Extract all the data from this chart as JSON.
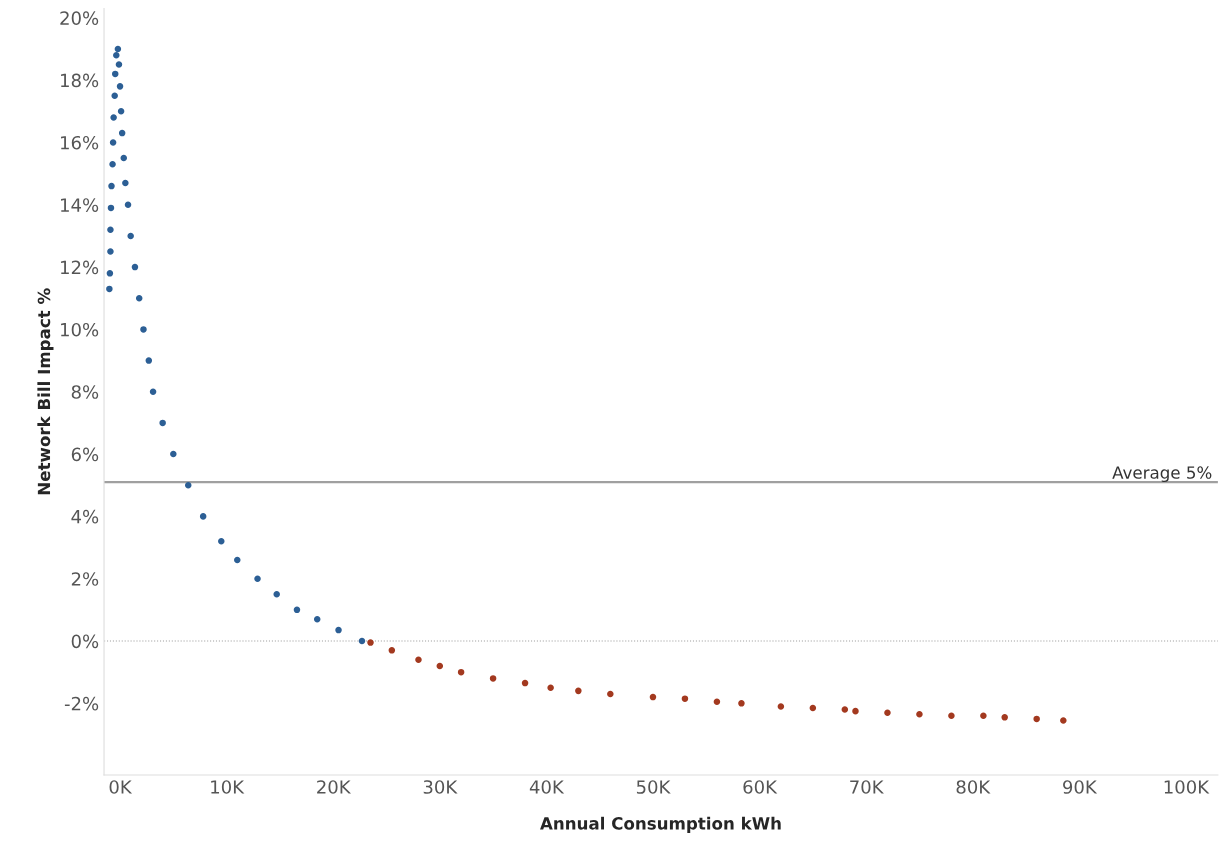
{
  "chart_data": {
    "type": "scatter",
    "xlabel": "Annual Consumption kWh",
    "ylabel": "Network Bill Impact %",
    "series": [
      {
        "color": "#2c5f95",
        "x": [
          -1000,
          -950,
          -900,
          -900,
          -850,
          -800,
          -700,
          -650,
          -600,
          -500,
          -450,
          -350,
          -200,
          -100,
          0,
          100,
          200,
          350,
          500,
          750,
          1000,
          1400,
          1800,
          2200,
          2700,
          3100,
          4000,
          5000,
          6400,
          7800,
          9500,
          11000,
          12900,
          14700,
          16600,
          18500,
          20500,
          22700
        ],
        "values": [
          11.3,
          11.8,
          12.5,
          13.2,
          13.9,
          14.6,
          15.3,
          16.0,
          16.8,
          17.5,
          18.2,
          18.8,
          19.0,
          18.5,
          17.8,
          17.0,
          16.3,
          15.5,
          14.7,
          14.0,
          13.0,
          12.0,
          11.0,
          10.0,
          9.0,
          8.0,
          7.0,
          6.0,
          5.0,
          4.0,
          3.2,
          2.6,
          2.0,
          1.5,
          1.0,
          0.7,
          0.35,
          0.0
        ]
      },
      {
        "color": "#a3391f",
        "x": [
          23500,
          25500,
          28000,
          30000,
          32000,
          35000,
          38000,
          40400,
          43000,
          46000,
          50000,
          53000,
          56000,
          58300,
          62000,
          65000,
          68000,
          69000,
          72000,
          75000,
          78000,
          81000,
          83000,
          86000,
          88500
        ],
        "values": [
          -0.05,
          -0.3,
          -0.6,
          -0.8,
          -1.0,
          -1.2,
          -1.35,
          -1.5,
          -1.6,
          -1.7,
          -1.8,
          -1.85,
          -1.95,
          -2.0,
          -2.1,
          -2.15,
          -2.2,
          -2.25,
          -2.3,
          -2.35,
          -2.4,
          -2.4,
          -2.45,
          -2.5,
          -2.55
        ]
      }
    ],
    "xlim": [
      -1500,
      103000
    ],
    "xticks": [
      {
        "value": 0,
        "label": "0K"
      },
      {
        "value": 10000,
        "label": "10K"
      },
      {
        "value": 20000,
        "label": "20K"
      },
      {
        "value": 30000,
        "label": "30K"
      },
      {
        "value": 40000,
        "label": "40K"
      },
      {
        "value": 50000,
        "label": "50K"
      },
      {
        "value": 60000,
        "label": "60K"
      },
      {
        "value": 70000,
        "label": "70K"
      },
      {
        "value": 80000,
        "label": "80K"
      },
      {
        "value": 90000,
        "label": "90K"
      },
      {
        "value": 100000,
        "label": "100K"
      }
    ],
    "ylim": [
      -4.3,
      20.3
    ],
    "yticks": [
      {
        "value": -2,
        "label": "-2%"
      },
      {
        "value": 0,
        "label": "0%"
      },
      {
        "value": 2,
        "label": "2%"
      },
      {
        "value": 4,
        "label": "4%"
      },
      {
        "value": 6,
        "label": "6%"
      },
      {
        "value": 8,
        "label": "8%"
      },
      {
        "value": 10,
        "label": "10%"
      },
      {
        "value": 12,
        "label": "12%"
      },
      {
        "value": 14,
        "label": "14%"
      },
      {
        "value": 16,
        "label": "16%"
      },
      {
        "value": 18,
        "label": "18%"
      },
      {
        "value": 20,
        "label": "20%"
      }
    ],
    "ref_lines": [
      {
        "axis": "y",
        "value": 5.1,
        "label": "Average 5%",
        "color": "#a0a0a0",
        "line_style": "solid"
      },
      {
        "axis": "y",
        "value": 0,
        "color": "#a0a0a0",
        "line_style": "dotted"
      }
    ],
    "marker": "circle",
    "grid": false,
    "legend": false
  }
}
